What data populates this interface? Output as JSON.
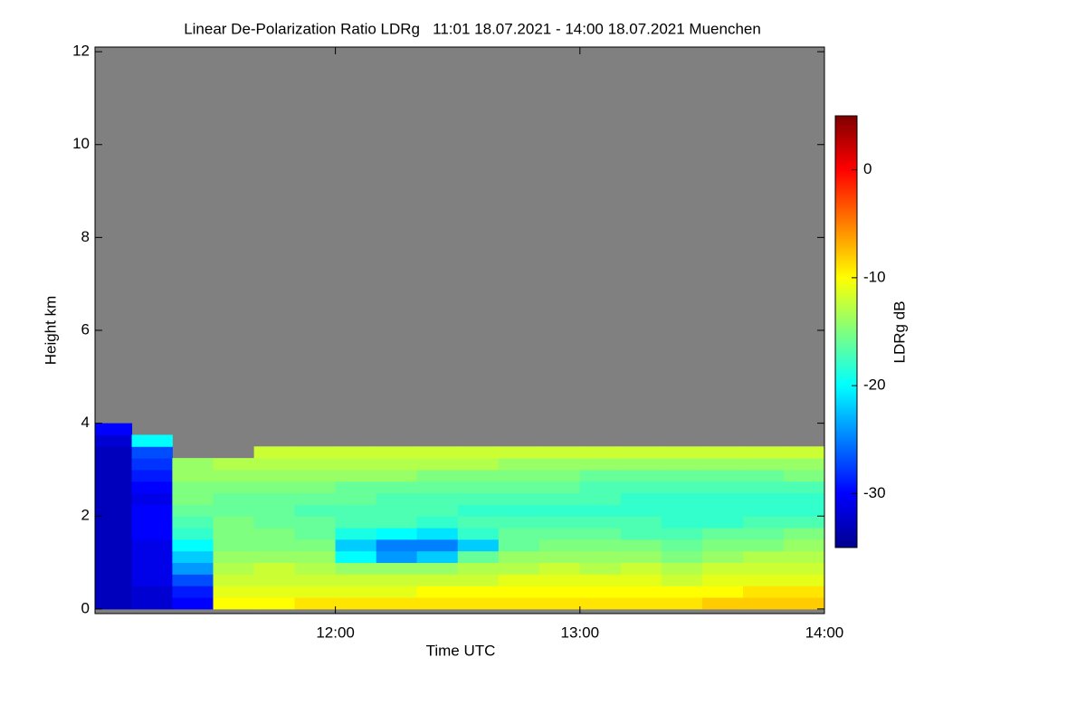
{
  "chart_data": {
    "type": "heatmap",
    "title": "Linear De-Polarization Ratio LDRg   11:01 18.07.2021 - 14:00 18.07.2021 Muenchen",
    "x_label": "Time UTC",
    "y_label": "Height km",
    "colorbar_label": "LDRg dB",
    "xbins": [
      11.017,
      11.167,
      11.333,
      11.5,
      11.667,
      11.833,
      12,
      12.167,
      12.333,
      12.5,
      12.667,
      12.833,
      13,
      13.167,
      13.333,
      13.5,
      13.667,
      13.833,
      14
    ],
    "ybins": [
      0,
      0.25,
      0.5,
      0.75,
      1,
      1.25,
      1.5,
      1.75,
      2,
      2.25,
      2.5,
      2.75,
      3,
      3.25,
      3.5,
      3.75,
      4
    ],
    "z": [
      [
        -33,
        -33,
        -33,
        -33,
        -33,
        -33,
        -33,
        -33,
        -33,
        -33,
        -33,
        -33,
        -33,
        -33,
        -32,
        -30
      ],
      [
        -32,
        -32,
        -31,
        -31,
        -31,
        -31,
        -30,
        -30,
        -30,
        -31,
        -30,
        -29,
        -28,
        -27,
        -20,
        null
      ],
      [
        -30,
        -29,
        -27,
        -24,
        -22,
        -20,
        -18,
        -17,
        -16,
        -15,
        -15,
        -14,
        -14,
        null,
        null,
        null
      ],
      [
        -10,
        -11,
        -12,
        -13,
        -14,
        -15,
        -15,
        -15,
        -16,
        -16,
        -15,
        -14,
        -13,
        null,
        null,
        null
      ],
      [
        -10,
        -11,
        -12,
        -12,
        -14,
        -15,
        -15,
        -16,
        -16,
        -16,
        -15,
        -14,
        -13,
        -12,
        null,
        null
      ],
      [
        -9,
        -11,
        -12,
        -13,
        -14,
        -15,
        -16,
        -16,
        -17,
        -16,
        -15,
        -14,
        -13,
        -12,
        null,
        null
      ],
      [
        -9,
        -11,
        -12,
        -14,
        -20,
        -22,
        -19,
        -17,
        -17,
        -16,
        -16,
        -14,
        -13,
        -12,
        null,
        null
      ],
      [
        -9,
        -11,
        -12,
        -14,
        -24,
        -25,
        -20,
        -17,
        -17,
        -17,
        -16,
        -14,
        -13,
        -12,
        null,
        null
      ],
      [
        -9,
        -10,
        -12,
        -14,
        -22,
        -25,
        -21,
        -18,
        -17,
        -17,
        -16,
        -15,
        -13,
        -12,
        null,
        null
      ],
      [
        -9,
        -10,
        -12,
        -13,
        -16,
        -22,
        -18,
        -17,
        -18,
        -17,
        -16,
        -15,
        -13,
        -12,
        null,
        null
      ],
      [
        -9,
        -10,
        -11,
        -13,
        -14,
        -16,
        -16,
        -17,
        -18,
        -17,
        -16,
        -15,
        -14,
        -12,
        null,
        null
      ],
      [
        -9,
        -10,
        -11,
        -12,
        -14,
        -15,
        -16,
        -17,
        -18,
        -17,
        -16,
        -15,
        -14,
        -12,
        null,
        null
      ],
      [
        -9,
        -10,
        -11,
        -13,
        -14,
        -15,
        -16,
        -17,
        -18,
        -17,
        -17,
        -16,
        -14,
        -12,
        null,
        null
      ],
      [
        -9,
        -10,
        -11,
        -12,
        -14,
        -15,
        -17,
        -17,
        -18,
        -18,
        -17,
        -16,
        -14,
        -12,
        null,
        null
      ],
      [
        -9,
        -10,
        -12,
        -13,
        -15,
        -16,
        -17,
        -18,
        -18,
        -18,
        -17,
        -16,
        -14,
        -12,
        null,
        null
      ],
      [
        -8,
        -10,
        -11,
        -12,
        -14,
        -15,
        -16,
        -18,
        -18,
        -18,
        -17,
        -16,
        -14,
        -12,
        null,
        null
      ],
      [
        -8,
        -9,
        -11,
        -12,
        -13,
        -15,
        -16,
        -17,
        -18,
        -18,
        -17,
        -16,
        -14,
        -12,
        null,
        null
      ],
      [
        -8,
        -9,
        -11,
        -12,
        -13,
        -14,
        -15,
        -17,
        -18,
        -18,
        -17,
        -15,
        -14,
        -12,
        null,
        null
      ]
    ],
    "xlim": [
      11.017,
      14
    ],
    "ylim": [
      -0.1,
      12.1
    ],
    "xticks": [
      {
        "value": 12,
        "label": "12:00"
      },
      {
        "value": 13,
        "label": "13:00"
      },
      {
        "value": 14,
        "label": "14:00"
      }
    ],
    "yticks": [
      0,
      2,
      4,
      6,
      8,
      10,
      12
    ],
    "zlim": [
      -35,
      5
    ],
    "zticks": [
      0,
      -10,
      -20,
      -30
    ],
    "colormap": [
      "#00008f",
      "#0000ff",
      "#007fff",
      "#00ffff",
      "#7fff7f",
      "#ffff00",
      "#ff7f00",
      "#ff0000",
      "#7f0000"
    ],
    "nan_color": "#808080"
  }
}
